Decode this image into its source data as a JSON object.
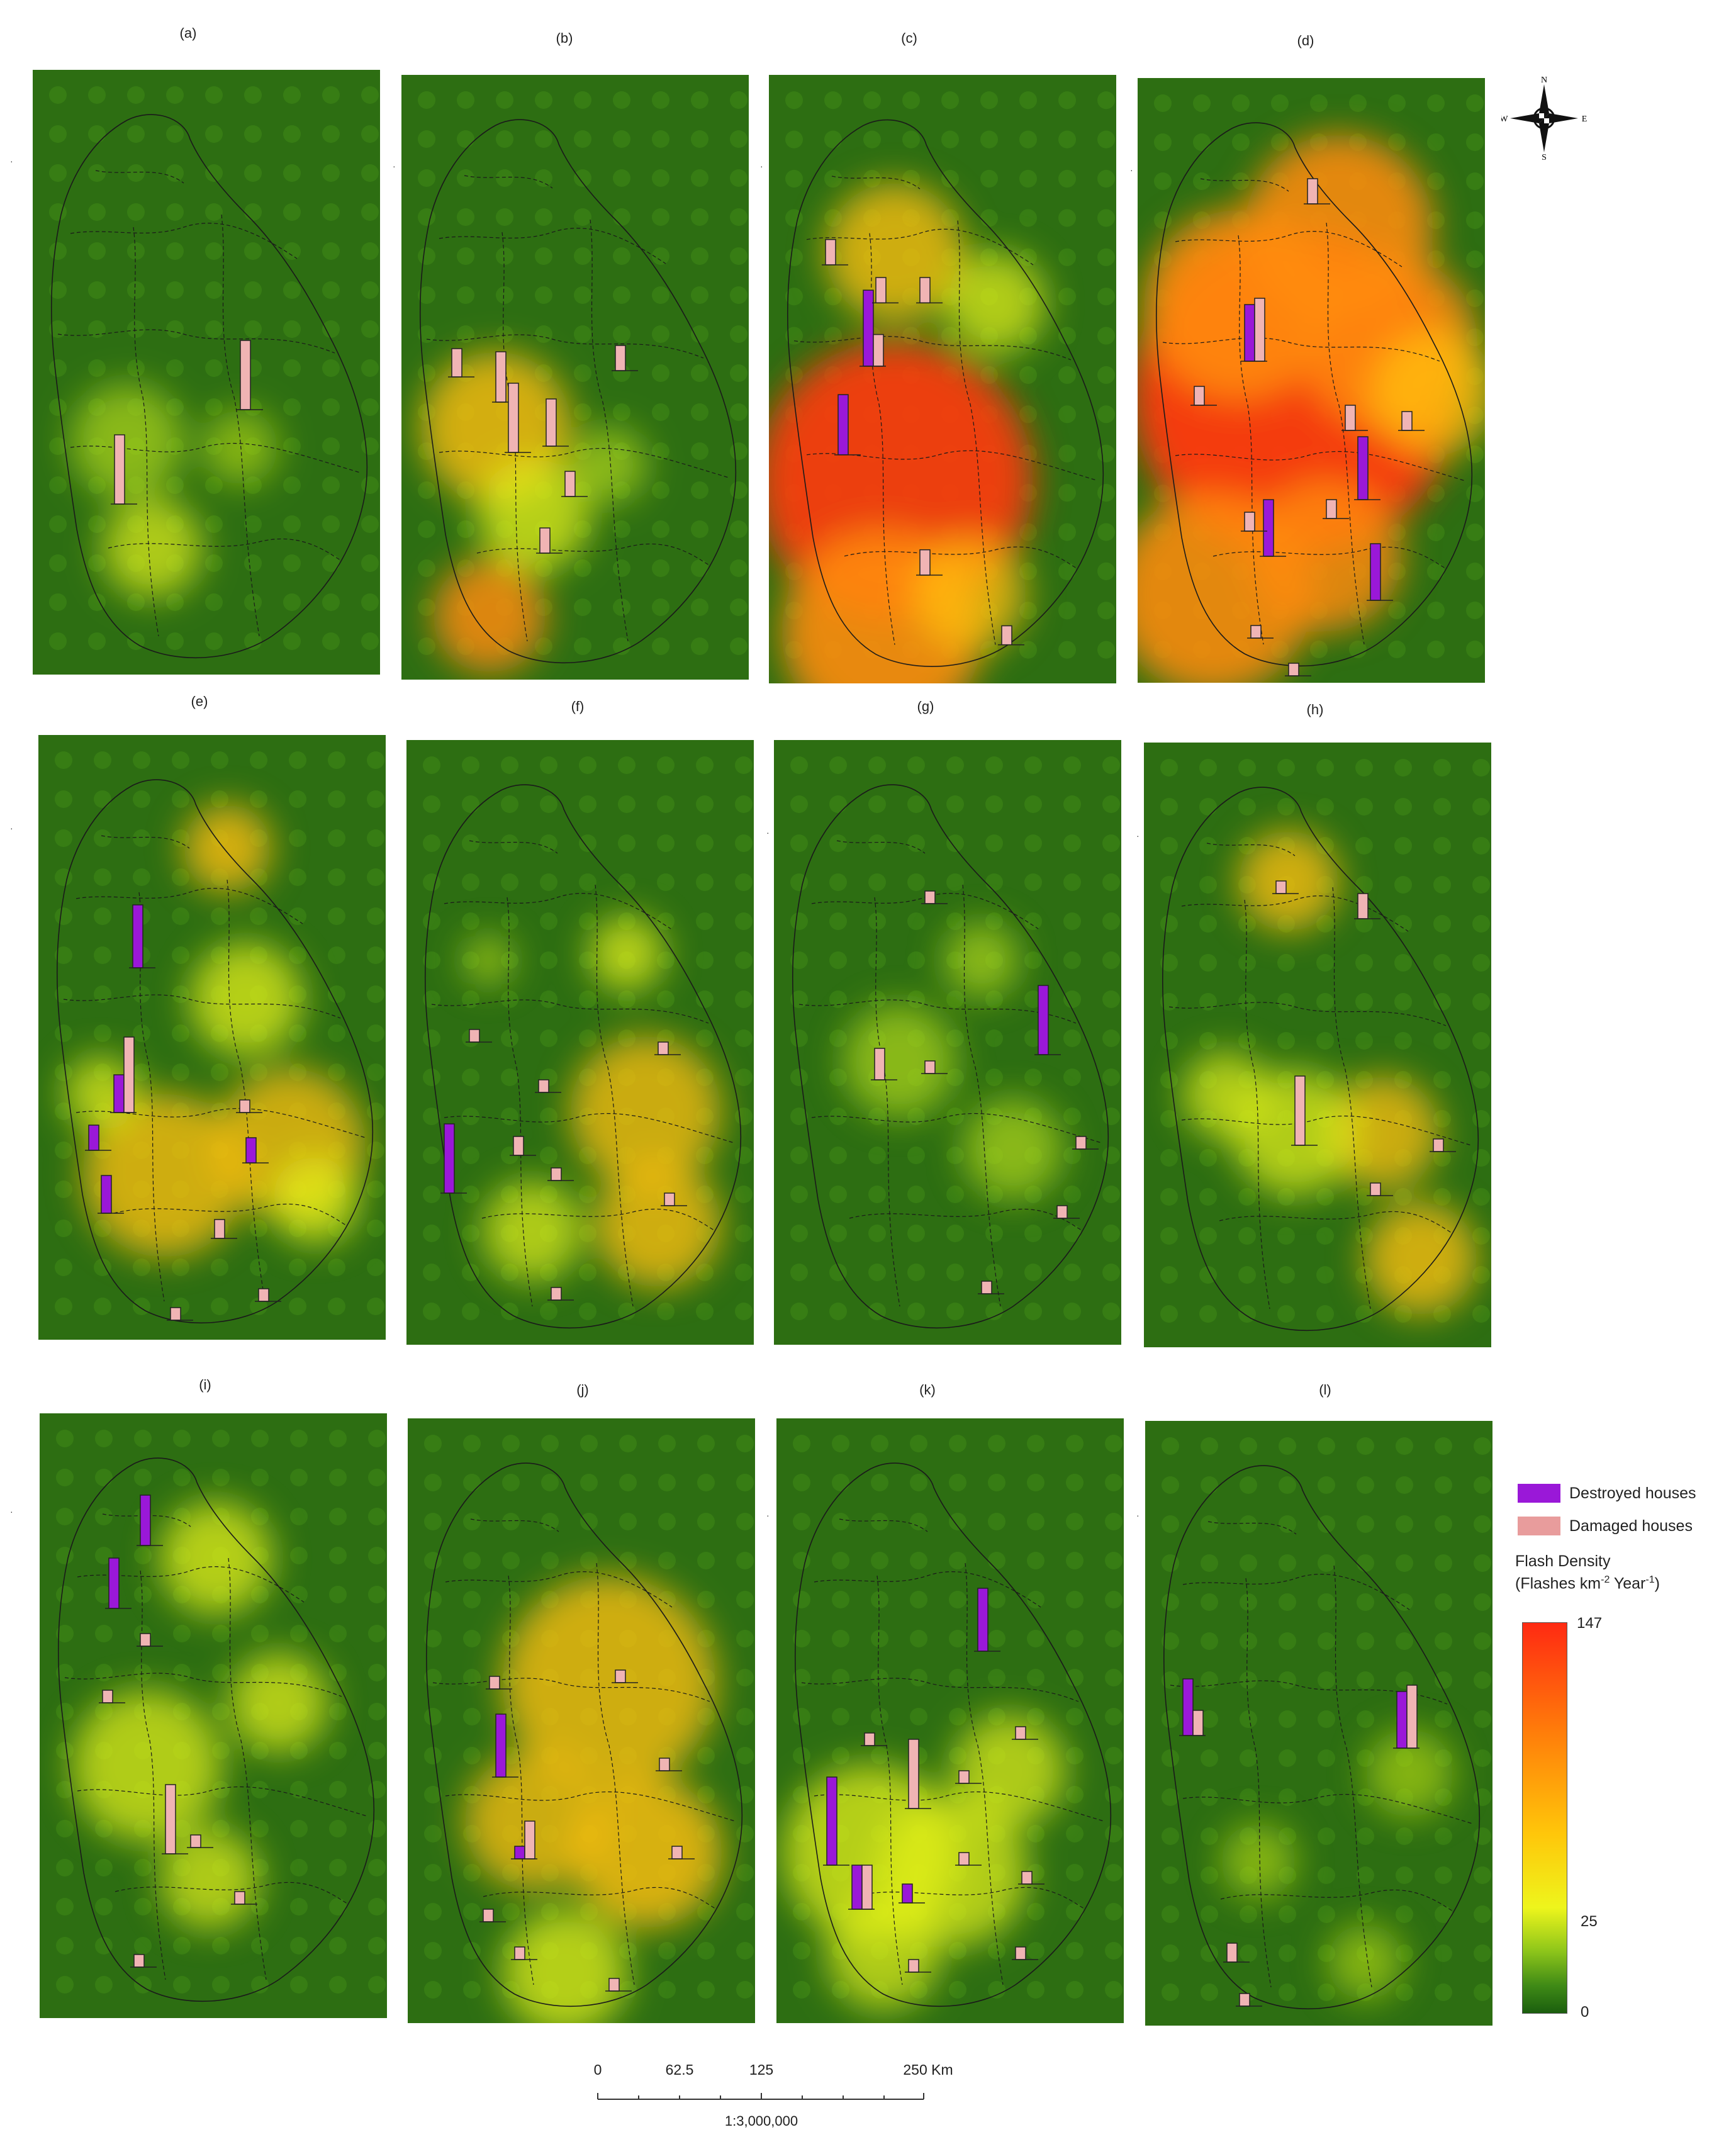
{
  "panels": [
    {
      "label": "(a)"
    },
    {
      "label": "(b)"
    },
    {
      "label": "(c)"
    },
    {
      "label": "(d)"
    },
    {
      "label": "(e)"
    },
    {
      "label": "(f)"
    },
    {
      "label": "(g)"
    },
    {
      "label": "(h)"
    },
    {
      "label": "(i)"
    },
    {
      "label": "(j)"
    },
    {
      "label": "(k)"
    },
    {
      "label": "(l)"
    }
  ],
  "legend": {
    "destroyed_label": "Destroyed houses",
    "damaged_label": "Damaged houses",
    "destroyed_color": "#9a18d8",
    "damaged_color": "#f0b4b4",
    "density_title_1": "Flash Density",
    "density_title_2": "(Flashes km",
    "density_exp_1": "-2",
    "density_title_3": " Year",
    "density_exp_2": "-1",
    "density_title_4": ")",
    "max": "147",
    "mid": "25",
    "min": "0"
  },
  "scale_bar": {
    "ticks": [
      "0",
      "62.5",
      "125",
      "250 Km"
    ],
    "ratio": "1:3,000,000"
  },
  "compass": {
    "n": "N",
    "s": "S",
    "e": "E",
    "w": "W"
  },
  "colors": {
    "background_green": "#2d6e12",
    "low_yellow": "#eef51c",
    "mid_orange": "#ffb30a",
    "high_red": "#ff2a12"
  }
}
